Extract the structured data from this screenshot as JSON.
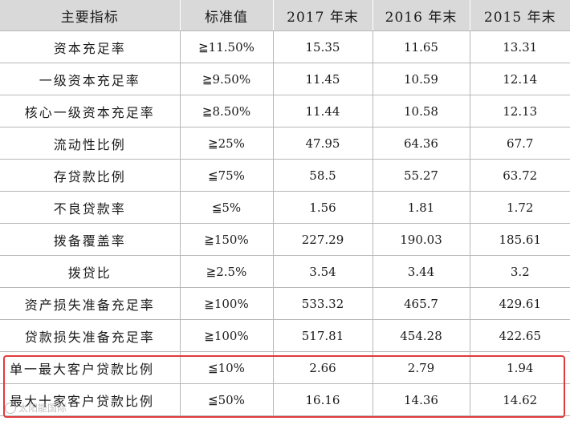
{
  "headers": [
    "主要指标",
    "标准值",
    "2017 年末",
    "2016 年末",
    "2015 年末"
  ],
  "rows": [
    {
      "name": "资本充足率",
      "standard": "≧11.50%",
      "y2017": "15.35",
      "y2016": "11.65",
      "y2015": "13.31"
    },
    {
      "name": "一级资本充足率",
      "standard": "≧9.50%",
      "y2017": "11.45",
      "y2016": "10.59",
      "y2015": "12.14"
    },
    {
      "name": "核心一级资本充足率",
      "standard": "≧8.50%",
      "y2017": "11.44",
      "y2016": "10.58",
      "y2015": "12.13"
    },
    {
      "name": "流动性比例",
      "standard": "≧25%",
      "y2017": "47.95",
      "y2016": "64.36",
      "y2015": "67.7"
    },
    {
      "name": "存贷款比例",
      "standard": "≦75%",
      "y2017": "58.5",
      "y2016": "55.27",
      "y2015": "63.72"
    },
    {
      "name": "不良贷款率",
      "standard": "≦5%",
      "y2017": "1.56",
      "y2016": "1.81",
      "y2015": "1.72"
    },
    {
      "name": "拨备覆盖率",
      "standard": "≧150%",
      "y2017": "227.29",
      "y2016": "190.03",
      "y2015": "185.61"
    },
    {
      "name": "拨贷比",
      "standard": "≧2.5%",
      "y2017": "3.54",
      "y2016": "3.44",
      "y2015": "3.2"
    },
    {
      "name": "资产损失准备充足率",
      "standard": "≧100%",
      "y2017": "533.32",
      "y2016": "465.7",
      "y2015": "429.61"
    },
    {
      "name": "贷款损失准备充足率",
      "standard": "≧100%",
      "y2017": "517.81",
      "y2016": "454.28",
      "y2015": "422.65"
    },
    {
      "name": "单一最大客户贷款比例",
      "standard": "≦10%",
      "y2017": "2.66",
      "y2016": "2.79",
      "y2015": "1.94"
    },
    {
      "name": "最大十家客户贷款比例",
      "standard": "≦50%",
      "y2017": "16.16",
      "y2016": "14.36",
      "y2015": "14.62"
    }
  ],
  "watermark": "太阳能国际",
  "highlight_color": "#e23a3a"
}
